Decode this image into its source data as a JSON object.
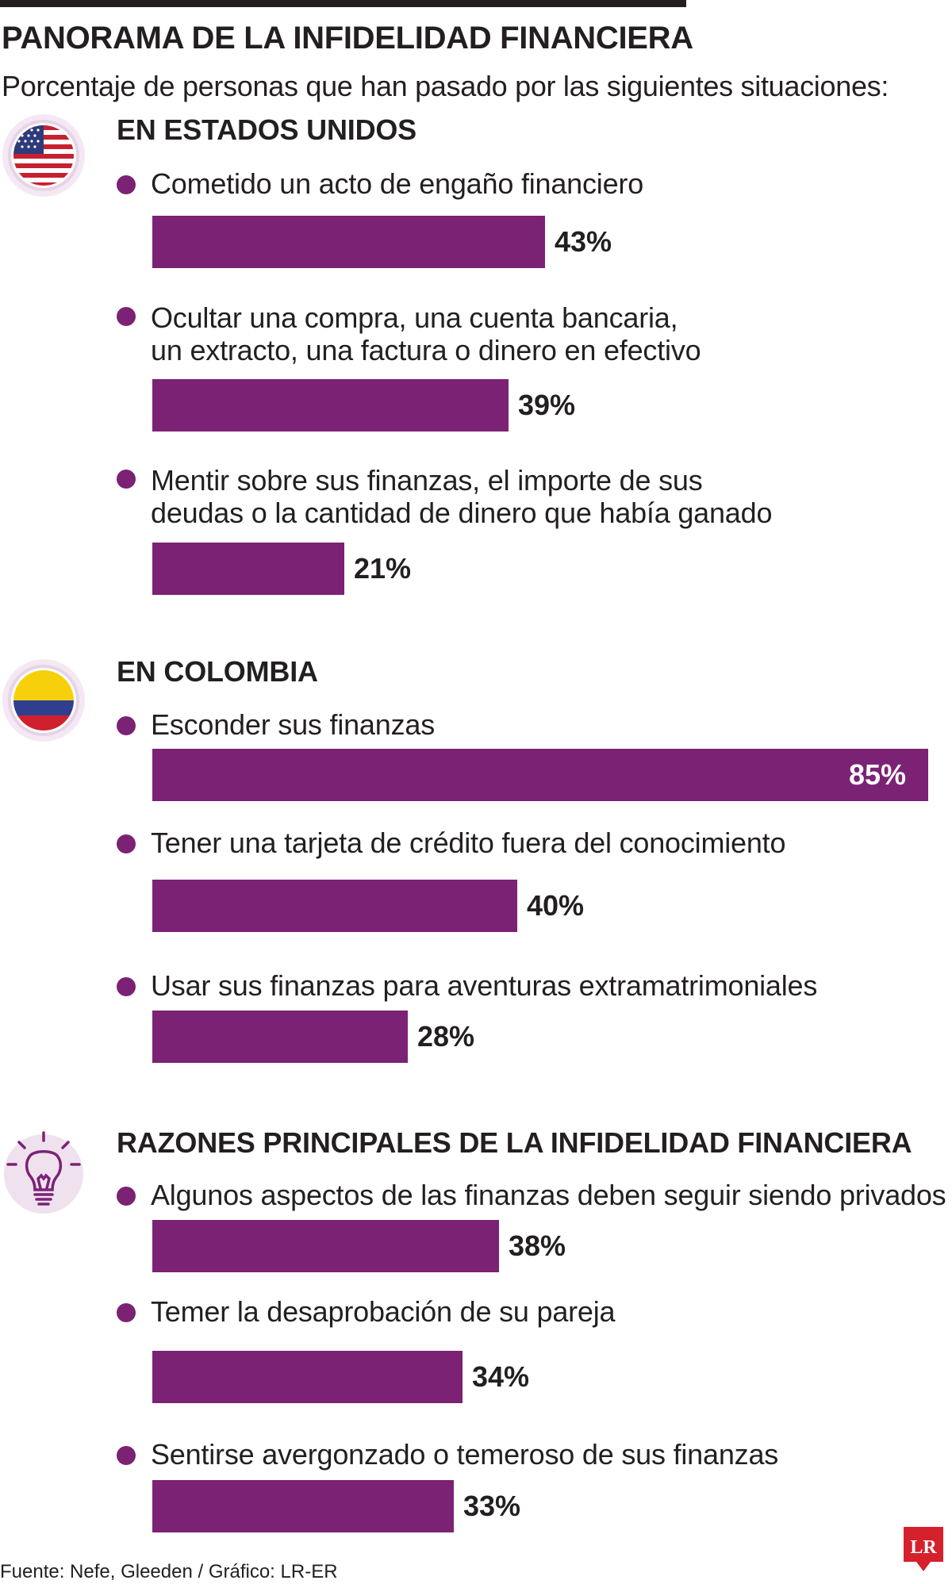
{
  "header": {
    "title": "PANORAMA DE LA INFIDELIDAD FINANCIERA",
    "subtitle": "Porcentaje de personas que han pasado por las siguientes situaciones:"
  },
  "colors": {
    "bar": "#7b2275",
    "text": "#231f20",
    "icon_ring": "#e7d3e6"
  },
  "sections": [
    {
      "title": "EN ESTADOS UNIDOS",
      "icon": "usa-flag-icon",
      "items": [
        {
          "label_lines": [
            "Cometido un acto de engaño financiero"
          ],
          "value": 43,
          "value_label": "43%"
        },
        {
          "label_lines": [
            "Ocultar una compra, una cuenta bancaria,",
            "un extracto, una factura o dinero en efectivo"
          ],
          "value": 39,
          "value_label": "39%"
        },
        {
          "label_lines": [
            "Mentir  sobre sus finanzas, el importe de sus",
            "deudas o la cantidad de dinero que había ganado"
          ],
          "value": 21,
          "value_label": "21%"
        }
      ]
    },
    {
      "title": "EN COLOMBIA",
      "icon": "colombia-flag-icon",
      "items": [
        {
          "label_lines": [
            "Esconder sus finanzas"
          ],
          "value": 85,
          "value_label": "85%"
        },
        {
          "label_lines": [
            "Tener una tarjeta de crédito fuera del conocimiento"
          ],
          "value": 40,
          "value_label": "40%"
        },
        {
          "label_lines": [
            "Usar sus finanzas para aventuras extramatrimoniales"
          ],
          "value": 28,
          "value_label": "28%"
        }
      ]
    },
    {
      "title": "RAZONES PRINCIPALES DE LA INFIDELIDAD FINANCIERA",
      "icon": "lightbulb-icon",
      "items": [
        {
          "label_lines": [
            "Algunos aspectos de las finanzas deben seguir siendo privados"
          ],
          "value": 38,
          "value_label": "38%"
        },
        {
          "label_lines": [
            "Temer la desaprobación de su pareja"
          ],
          "value": 34,
          "value_label": "34%"
        },
        {
          "label_lines": [
            "Sentirse avergonzado o temeroso de sus finanzas"
          ],
          "value": 33,
          "value_label": "33%"
        }
      ]
    }
  ],
  "chart_data": {
    "type": "bar",
    "title": "PANORAMA DE LA INFIDELIDAD FINANCIERA",
    "subtitle": "Porcentaje de personas que han pasado por las siguientes situaciones:",
    "orientation": "horizontal",
    "groups": [
      {
        "name": "EN ESTADOS UNIDOS",
        "categories": [
          "Cometido un acto de engaño financiero",
          "Ocultar una compra, una cuenta bancaria, un extracto, una factura o dinero en efectivo",
          "Mentir  sobre sus finanzas, el importe de sus deudas o la cantidad de dinero que había ganado"
        ],
        "values": [
          43,
          39,
          21
        ]
      },
      {
        "name": "EN COLOMBIA",
        "categories": [
          "Esconder sus finanzas",
          "Tener una tarjeta de crédito fuera del conocimiento",
          "Usar sus finanzas para aventuras extramatrimoniales"
        ],
        "values": [
          85,
          40,
          28
        ]
      },
      {
        "name": "RAZONES PRINCIPALES DE LA INFIDELIDAD FINANCIERA",
        "categories": [
          "Algunos aspectos de las finanzas deben seguir siendo privados",
          "Temer la desaprobación de su pareja",
          "Sentirse avergonzado o temeroso de sus finanzas"
        ],
        "values": [
          38,
          34,
          33
        ]
      }
    ],
    "unit": "%",
    "grid": false
  },
  "footer": {
    "source": "Fuente: Nefe, Gleeden / Gráfico: LR-ER",
    "logo_text": "LR"
  }
}
